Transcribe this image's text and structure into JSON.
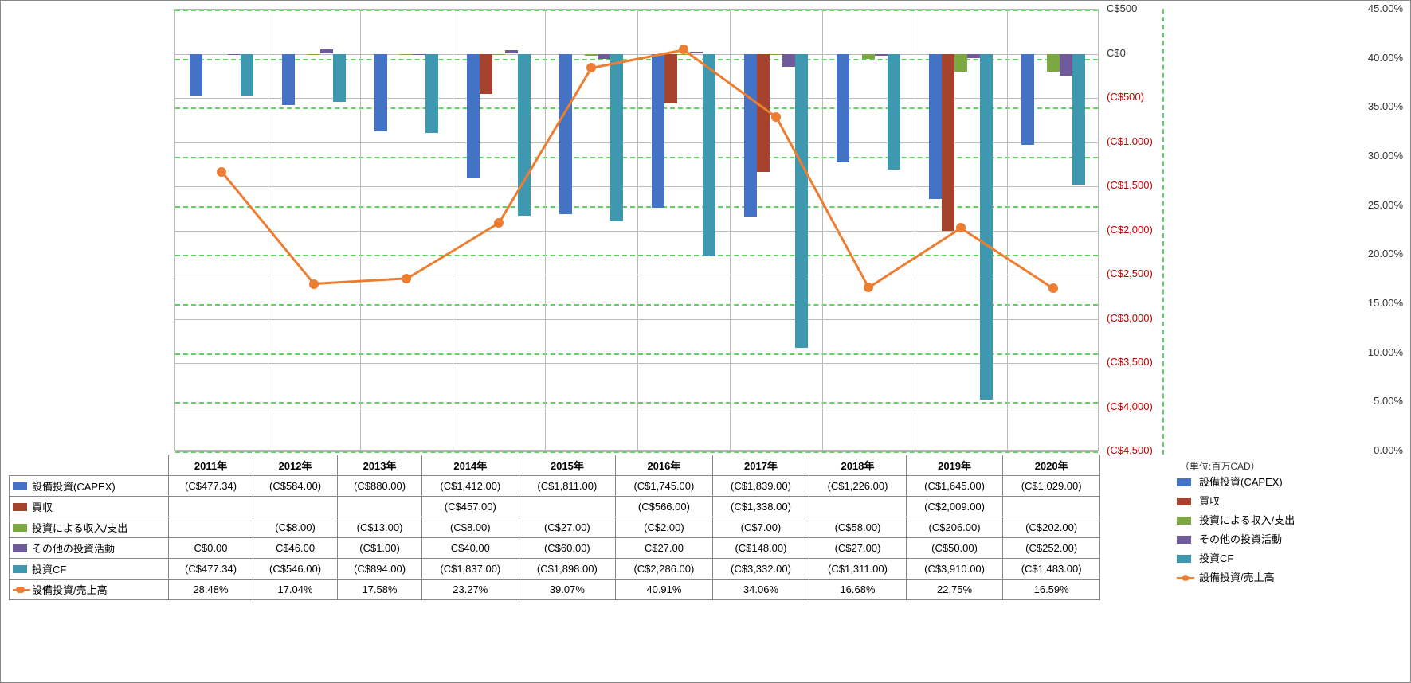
{
  "unit_label": "（単位:百万CAD）",
  "chart": {
    "categories": [
      "2011年",
      "2012年",
      "2013年",
      "2014年",
      "2015年",
      "2016年",
      "2017年",
      "2018年",
      "2019年",
      "2020年"
    ],
    "left_axis": {
      "min": -4500,
      "max": 500,
      "step": 500,
      "format_prefix": "C$",
      "neg_format": "(C${v})"
    },
    "right_axis": {
      "min": 0,
      "max": 0.45,
      "step": 0.05,
      "format": "pct"
    },
    "grid_color": "#bbbbbb",
    "dash_color": "#5fd35f",
    "baseline_y": 0,
    "series": [
      {
        "key": "capex",
        "label": "設備投資(CAPEX)",
        "type": "bar",
        "color": "#4472c4",
        "values": [
          -477.34,
          -584.0,
          -880.0,
          -1412.0,
          -1811.0,
          -1745.0,
          -1839.0,
          -1226.0,
          -1645.0,
          -1029.0
        ],
        "display": [
          "(C$477.34)",
          "(C$584.00)",
          "(C$880.00)",
          "(C$1,412.00)",
          "(C$1,811.00)",
          "(C$1,745.00)",
          "(C$1,839.00)",
          "(C$1,226.00)",
          "(C$1,645.00)",
          "(C$1,029.00)"
        ]
      },
      {
        "key": "acq",
        "label": "買収",
        "type": "bar",
        "color": "#a5432e",
        "values": [
          null,
          null,
          null,
          -457.0,
          null,
          -566.0,
          -1338.0,
          null,
          -2009.0,
          null
        ],
        "display": [
          "",
          "",
          "",
          "(C$457.00)",
          "",
          "(C$566.00)",
          "(C$1,338.00)",
          "",
          "(C$2,009.00)",
          ""
        ]
      },
      {
        "key": "invio",
        "label": "投資による収入/支出",
        "type": "bar",
        "color": "#7ba843",
        "values": [
          null,
          -8.0,
          -13.0,
          -8.0,
          -27.0,
          -2.0,
          -7.0,
          -58.0,
          -206.0,
          -202.0
        ],
        "display": [
          "",
          "(C$8.00)",
          "(C$13.00)",
          "(C$8.00)",
          "(C$27.00)",
          "(C$2.00)",
          "(C$7.00)",
          "(C$58.00)",
          "(C$206.00)",
          "(C$202.00)"
        ]
      },
      {
        "key": "other",
        "label": "その他の投資活動",
        "type": "bar",
        "color": "#6f5a9a",
        "values": [
          0.0,
          46.0,
          -1.0,
          40.0,
          -60.0,
          27.0,
          -148.0,
          -27.0,
          -50.0,
          -252.0
        ],
        "display": [
          "C$0.00",
          "C$46.00",
          "(C$1.00)",
          "C$40.00",
          "(C$60.00)",
          "C$27.00",
          "(C$148.00)",
          "(C$27.00)",
          "(C$50.00)",
          "(C$252.00)"
        ]
      },
      {
        "key": "cf",
        "label": "投資CF",
        "type": "bar",
        "color": "#3e99b0",
        "values": [
          -477.34,
          -546.0,
          -894.0,
          -1837.0,
          -1898.0,
          -2286.0,
          -3332.0,
          -1311.0,
          -3910.0,
          -1483.0
        ],
        "display": [
          "(C$477.34)",
          "(C$546.00)",
          "(C$894.00)",
          "(C$1,837.00)",
          "(C$1,898.00)",
          "(C$2,286.00)",
          "(C$3,332.00)",
          "(C$1,311.00)",
          "(C$3,910.00)",
          "(C$1,483.00)"
        ]
      },
      {
        "key": "ratio",
        "label": "設備投資/売上高",
        "type": "line",
        "color": "#ed7d31",
        "values": [
          0.2848,
          0.1704,
          0.1758,
          0.2327,
          0.3907,
          0.4091,
          0.3406,
          0.1668,
          0.2275,
          0.1659
        ],
        "display": [
          "28.48%",
          "17.04%",
          "17.58%",
          "23.27%",
          "39.07%",
          "40.91%",
          "34.06%",
          "16.68%",
          "22.75%",
          "16.59%"
        ]
      }
    ]
  }
}
